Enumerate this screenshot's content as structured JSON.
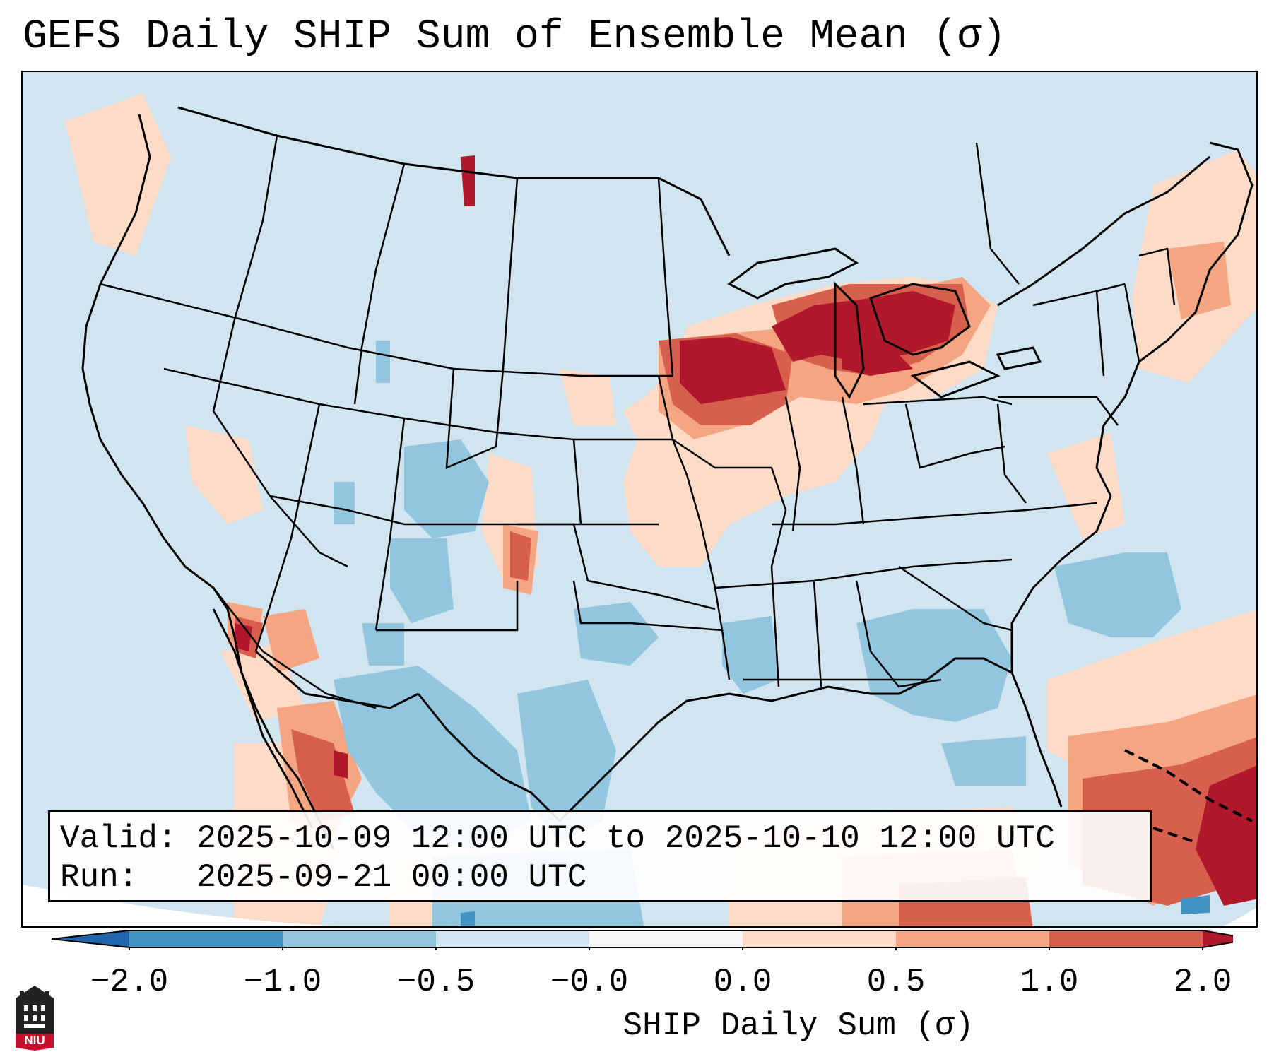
{
  "title": "GEFS Daily SHIP Sum of Ensemble Mean (σ)",
  "info": {
    "valid_line": "Valid: 2025-10-09 12:00 UTC to 2025-10-10 12:00 UTC",
    "run_line": "Run:   2025-09-21 00:00 UTC"
  },
  "colorbar": {
    "label": "SHIP Daily Sum (σ)",
    "ticks": [
      "−2.0",
      "−1.0",
      "−0.5",
      "−0.0",
      "0.0",
      "0.5",
      "1.0",
      "2.0"
    ],
    "colors": [
      "#2166ac",
      "#4393c3",
      "#92c5de",
      "#d1e5f0",
      "#fddbc7",
      "#f4a582",
      "#d6604d",
      "#b2182b"
    ],
    "extend_low_color": "#2166ac",
    "extend_high_color": "#b2182b"
  },
  "logo": {
    "text": "NIU"
  },
  "map": {
    "background_color": "#d1e5f0",
    "region": "Contiguous United States",
    "features": [
      "state-borders",
      "coastlines",
      "international-borders"
    ],
    "highlight": "strongest positive anomaly over Upper Midwest / Great Lakes and Caribbean"
  }
}
